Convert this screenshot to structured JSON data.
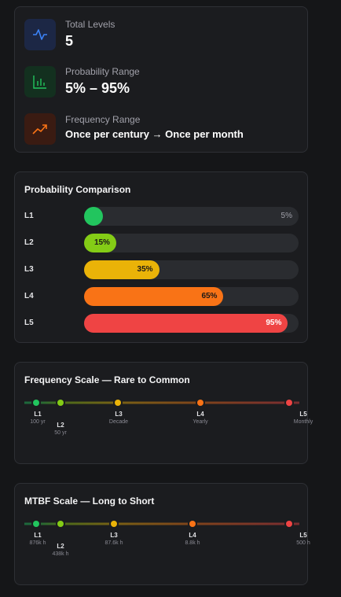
{
  "summary": [
    {
      "label": "Total Levels",
      "value": "5"
    },
    {
      "label": "Probability Range",
      "value": "5% – 95%"
    },
    {
      "label": "Frequency Range",
      "value": "Once per century → Once per month"
    }
  ],
  "level_colors": [
    "#22c55e",
    "#84cc16",
    "#eab308",
    "#f97316",
    "#ef4444"
  ],
  "probability": {
    "title": "Probability Comparison",
    "bars": [
      {
        "level": "L1",
        "value": 5,
        "label": "5%"
      },
      {
        "level": "L2",
        "value": 15,
        "label": "15%"
      },
      {
        "level": "L3",
        "value": 35,
        "label": "35%"
      },
      {
        "level": "L4",
        "value": 65,
        "label": "65%"
      },
      {
        "level": "L5",
        "value": 95,
        "label": "95%"
      }
    ]
  },
  "frequency": {
    "title": "Frequency Scale — Rare to Common",
    "points": [
      {
        "level": "L1",
        "label": "100 yr"
      },
      {
        "level": "L2",
        "label": "50 yr"
      },
      {
        "level": "L3",
        "label": "Decade"
      },
      {
        "level": "L4",
        "label": "Yearly"
      },
      {
        "level": "L5",
        "label": "Monthly"
      }
    ]
  },
  "mtbf": {
    "title": "MTBF Scale — Long to Short",
    "points": [
      {
        "level": "L1",
        "label": "876k h"
      },
      {
        "level": "L2",
        "label": "438k h"
      },
      {
        "level": "L3",
        "label": "87.6k h"
      },
      {
        "level": "L4",
        "label": "8.8k h"
      },
      {
        "level": "L5",
        "label": "500 h"
      }
    ]
  }
}
